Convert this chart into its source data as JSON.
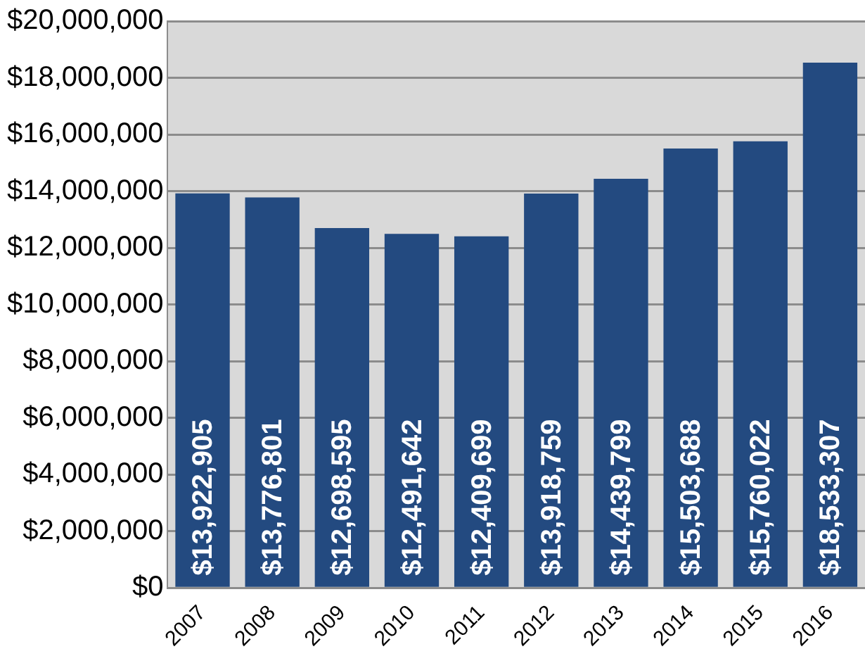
{
  "chart_data": {
    "type": "bar",
    "categories": [
      "2007",
      "2008",
      "2009",
      "2010",
      "2011",
      "2012",
      "2013",
      "2014",
      "2015",
      "2016"
    ],
    "values": [
      13922905,
      13776801,
      12698595,
      12491642,
      12409699,
      13918759,
      14439799,
      15503688,
      15760022,
      18533307
    ],
    "value_labels": [
      "$13,922,905",
      "$13,776,801",
      "$12,698,595",
      "$12,491,642",
      "$12,409,699",
      "$13,918,759",
      "$14,439,799",
      "$15,503,688",
      "$15,760,022",
      "$18,533,307"
    ],
    "color": "#234a80",
    "ylim": [
      0,
      20000000
    ],
    "yticks": [
      {
        "value": 0,
        "label": "$0"
      },
      {
        "value": 2000000,
        "label": "$2,000,000"
      },
      {
        "value": 4000000,
        "label": "$4,000,000"
      },
      {
        "value": 6000000,
        "label": "$6,000,000"
      },
      {
        "value": 8000000,
        "label": "$8,000,000"
      },
      {
        "value": 10000000,
        "label": "$10,000,000"
      },
      {
        "value": 12000000,
        "label": "$12,000,000"
      },
      {
        "value": 14000000,
        "label": "$14,000,000"
      },
      {
        "value": 16000000,
        "label": "$16,000,000"
      },
      {
        "value": 18000000,
        "label": "$18,000,000"
      },
      {
        "value": 20000000,
        "label": "$20,000,000"
      }
    ],
    "grid": "y",
    "legend": false
  }
}
